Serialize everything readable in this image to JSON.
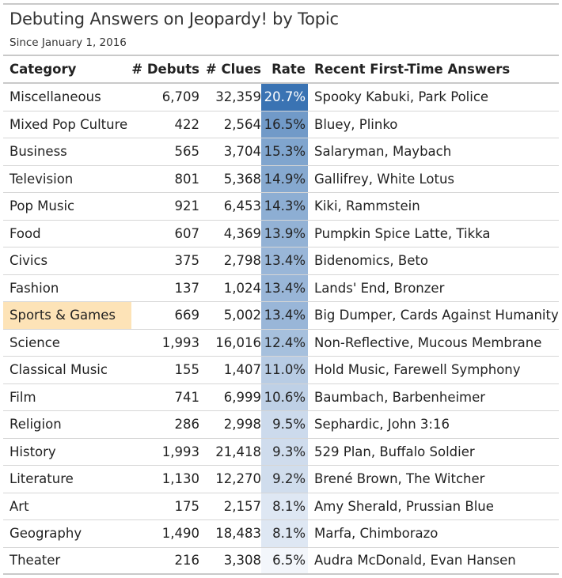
{
  "title": "Debuting Answers on Jeopardy! by Topic",
  "subtitle": "Since January 1, 2016",
  "chart_data": {
    "type": "table",
    "columns": [
      "Category",
      "# Debuts",
      "# Clues",
      "Rate",
      "Recent First-Time Answers"
    ],
    "rate_color_scale": {
      "low": "#f3f6fb",
      "high": "#3a73b3",
      "min": 6.5,
      "max": 20.7
    },
    "highlight_color": "#fde3b7",
    "rows": [
      {
        "category": "Miscellaneous",
        "debuts": "6,709",
        "clues": "32,359",
        "rate": "20.7%",
        "rate_value": 20.7,
        "answers": "Spooky Kabuki, Park Police",
        "highlight": false
      },
      {
        "category": "Mixed Pop Culture",
        "debuts": "422",
        "clues": "2,564",
        "rate": "16.5%",
        "rate_value": 16.5,
        "answers": "Bluey, Plinko",
        "highlight": false
      },
      {
        "category": "Business",
        "debuts": "565",
        "clues": "3,704",
        "rate": "15.3%",
        "rate_value": 15.3,
        "answers": "Salaryman, Maybach",
        "highlight": false
      },
      {
        "category": "Television",
        "debuts": "801",
        "clues": "5,368",
        "rate": "14.9%",
        "rate_value": 14.9,
        "answers": "Gallifrey, White Lotus",
        "highlight": false
      },
      {
        "category": "Pop Music",
        "debuts": "921",
        "clues": "6,453",
        "rate": "14.3%",
        "rate_value": 14.3,
        "answers": "Kiki, Rammstein",
        "highlight": false
      },
      {
        "category": "Food",
        "debuts": "607",
        "clues": "4,369",
        "rate": "13.9%",
        "rate_value": 13.9,
        "answers": "Pumpkin Spice Latte, Tikka",
        "highlight": false
      },
      {
        "category": "Civics",
        "debuts": "375",
        "clues": "2,798",
        "rate": "13.4%",
        "rate_value": 13.4,
        "answers": "Bidenomics, Beto",
        "highlight": false
      },
      {
        "category": "Fashion",
        "debuts": "137",
        "clues": "1,024",
        "rate": "13.4%",
        "rate_value": 13.4,
        "answers": "Lands' End, Bronzer",
        "highlight": false
      },
      {
        "category": "Sports & Games",
        "debuts": "669",
        "clues": "5,002",
        "rate": "13.4%",
        "rate_value": 13.4,
        "answers": "Big Dumper, Cards Against Humanity",
        "highlight": true
      },
      {
        "category": "Science",
        "debuts": "1,993",
        "clues": "16,016",
        "rate": "12.4%",
        "rate_value": 12.4,
        "answers": "Non-Reflective, Mucous Membrane",
        "highlight": false
      },
      {
        "category": "Classical Music",
        "debuts": "155",
        "clues": "1,407",
        "rate": "11.0%",
        "rate_value": 11.0,
        "answers": "Hold Music, Farewell Symphony",
        "highlight": false
      },
      {
        "category": "Film",
        "debuts": "741",
        "clues": "6,999",
        "rate": "10.6%",
        "rate_value": 10.6,
        "answers": "Baumbach, Barbenheimer",
        "highlight": false
      },
      {
        "category": "Religion",
        "debuts": "286",
        "clues": "2,998",
        "rate": "9.5%",
        "rate_value": 9.5,
        "answers": "Sephardic, John 3:16",
        "highlight": false
      },
      {
        "category": "History",
        "debuts": "1,993",
        "clues": "21,418",
        "rate": "9.3%",
        "rate_value": 9.3,
        "answers": "529 Plan, Buffalo Soldier",
        "highlight": false
      },
      {
        "category": "Literature",
        "debuts": "1,130",
        "clues": "12,270",
        "rate": "9.2%",
        "rate_value": 9.2,
        "answers": "Brené Brown, The Witcher",
        "highlight": false
      },
      {
        "category": "Art",
        "debuts": "175",
        "clues": "2,157",
        "rate": "8.1%",
        "rate_value": 8.1,
        "answers": "Amy Sherald, Prussian Blue",
        "highlight": false
      },
      {
        "category": "Geography",
        "debuts": "1,490",
        "clues": "18,483",
        "rate": "8.1%",
        "rate_value": 8.1,
        "answers": "Marfa, Chimborazo",
        "highlight": false
      },
      {
        "category": "Theater",
        "debuts": "216",
        "clues": "3,308",
        "rate": "6.5%",
        "rate_value": 6.5,
        "answers": "Audra McDonald, Evan Hansen",
        "highlight": false
      }
    ]
  }
}
